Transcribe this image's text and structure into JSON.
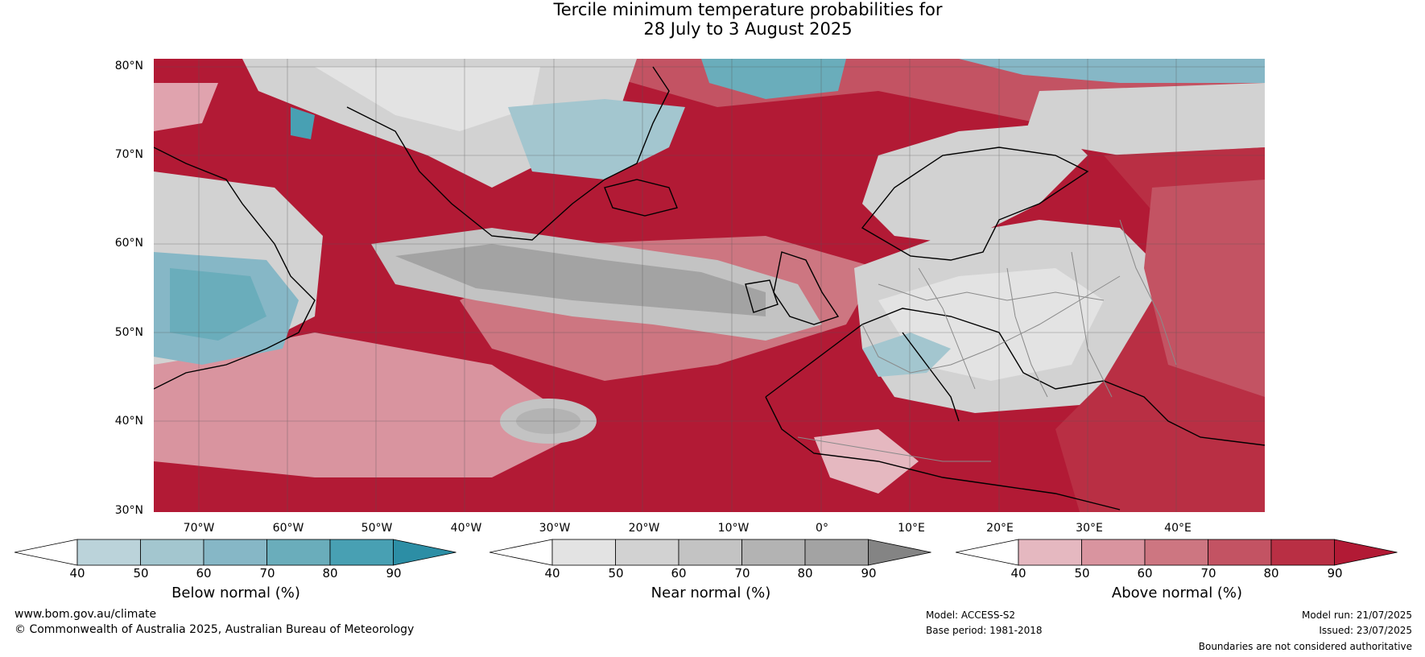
{
  "title": {
    "line1": "Tercile minimum temperature probabilities for",
    "line2": "28 July to 3 August 2025"
  },
  "lat_labels": [
    "80°N",
    "70°N",
    "60°N",
    "50°N",
    "40°N",
    "30°N"
  ],
  "lon_labels": [
    "70°W",
    "60°W",
    "50°W",
    "40°W",
    "30°W",
    "20°W",
    "10°W",
    "0°",
    "10°E",
    "20°E",
    "30°E",
    "40°E"
  ],
  "colorbars": [
    {
      "title": "Below normal (%)",
      "ticks": [
        "40",
        "50",
        "60",
        "70",
        "80",
        "90"
      ],
      "colors": [
        "#ffffff",
        "#bbd3da",
        "#a3c6cf",
        "#86b7c6",
        "#6aadbb",
        "#48a0b3",
        "#2c8ea5"
      ]
    },
    {
      "title": "Near normal (%)",
      "ticks": [
        "40",
        "50",
        "60",
        "70",
        "80",
        "90"
      ],
      "colors": [
        "#ffffff",
        "#e3e3e3",
        "#d2d2d2",
        "#c3c3c3",
        "#b3b3b3",
        "#a3a3a3",
        "#848484"
      ]
    },
    {
      "title": "Above normal (%)",
      "ticks": [
        "40",
        "50",
        "60",
        "70",
        "80",
        "90"
      ],
      "colors": [
        "#ffffff",
        "#e5b8c0",
        "#d9949f",
        "#cd7681",
        "#c35363",
        "#b92f44",
        "#b21a35"
      ]
    }
  ],
  "footer": {
    "website": "www.bom.gov.au/climate",
    "copyright": "© Commonwealth of Australia 2025, Australian Bureau of Meteorology",
    "model": "Model: ACCESS-S2",
    "base_period": "Base period: 1981-2018",
    "model_run": "Model run: 21/07/2025",
    "issued": "Issued: 23/07/2025",
    "disclaimer": "Boundaries are not considered authoritative"
  }
}
